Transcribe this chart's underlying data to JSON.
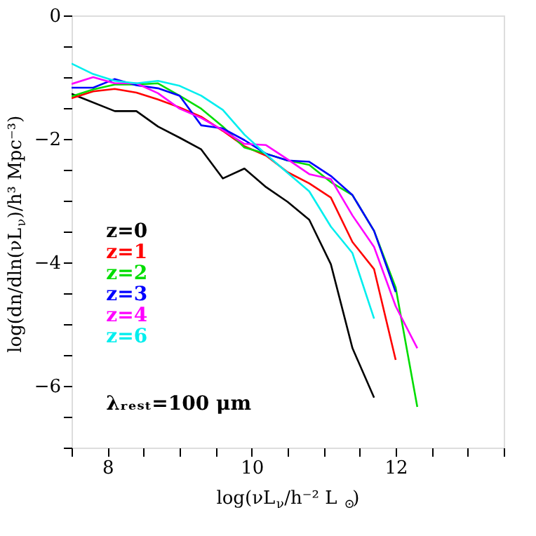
{
  "chart_data": {
    "type": "line",
    "xlabel": "log(νL$_{ν}$/h⁻² L$_{⊙}$)",
    "ylabel": "log(dn/dln(νL$_{ν}$)/h³ Mpc⁻³)",
    "x": [
      7.5,
      7.8,
      8.1,
      8.4,
      8.7,
      9.0,
      9.3,
      9.6,
      9.9,
      10.2,
      10.5,
      10.8,
      11.1,
      11.4,
      11.7,
      12.0,
      12.3
    ],
    "series": [
      {
        "name": "z=0",
        "color": "#000000",
        "x": [
          7.5,
          8.1,
          8.4,
          8.7,
          9.0,
          9.3,
          9.6,
          9.9,
          10.2,
          10.5,
          10.8,
          11.1,
          11.4,
          11.7
        ],
        "values": [
          -1.27,
          -1.55,
          -1.55,
          -1.8,
          -1.98,
          -2.17,
          -2.64,
          -2.48,
          -2.78,
          -3.02,
          -3.31,
          -4.03,
          -5.39,
          -6.19
        ]
      },
      {
        "name": "z=1",
        "color": "#ff0000",
        "values": [
          -1.34,
          -1.23,
          -1.19,
          -1.25,
          -1.36,
          -1.49,
          -1.64,
          -1.87,
          -2.12,
          -2.27,
          -2.54,
          -2.72,
          -2.95,
          -3.67,
          -4.11,
          -5.58,
          null
        ]
      },
      {
        "name": "z=2",
        "color": "#00dd00",
        "values": [
          -1.31,
          -1.2,
          -1.12,
          -1.12,
          -1.1,
          -1.3,
          -1.51,
          -1.8,
          -2.14,
          -2.24,
          -2.35,
          -2.42,
          -2.7,
          -2.91,
          -3.49,
          -4.41,
          -6.34
        ]
      },
      {
        "name": "z=3",
        "color": "#0000ff",
        "values": [
          -1.17,
          -1.17,
          -1.03,
          -1.13,
          -1.18,
          -1.3,
          -1.78,
          -1.83,
          -2.02,
          -2.24,
          -2.35,
          -2.37,
          -2.6,
          -2.91,
          -3.49,
          -4.48,
          null
        ]
      },
      {
        "name": "z=4",
        "color": "#ff00ff",
        "values": [
          -1.11,
          -1.0,
          -1.1,
          -1.1,
          -1.26,
          -1.51,
          -1.66,
          -1.86,
          -2.08,
          -2.1,
          -2.33,
          -2.57,
          -2.65,
          -3.24,
          -3.75,
          -4.71,
          -5.39
        ]
      },
      {
        "name": "z=6",
        "color": "#00eeee",
        "values": [
          -0.78,
          -0.95,
          -1.06,
          -1.1,
          -1.06,
          -1.14,
          -1.3,
          -1.53,
          -1.93,
          -2.25,
          -2.55,
          -2.85,
          -3.42,
          -3.85,
          -4.91,
          null,
          null
        ]
      }
    ],
    "xlim": [
      7.5,
      13.5
    ],
    "ylim": [
      -7,
      0
    ],
    "xticks": [
      {
        "value": 7.5,
        "label": null
      },
      8,
      {
        "value": 8.5,
        "label": null
      },
      {
        "value": 9,
        "label": null
      },
      {
        "value": 9.5,
        "label": null
      },
      10,
      {
        "value": 10.5,
        "label": null
      },
      {
        "value": 11,
        "label": null
      },
      {
        "value": 11.5,
        "label": null
      },
      12,
      {
        "value": 12.5,
        "label": null
      },
      {
        "value": 13,
        "label": null
      },
      {
        "value": 13.5,
        "label": null
      }
    ],
    "yticks": [
      0,
      {
        "value": -0.5,
        "label": null
      },
      {
        "value": -1,
        "label": null
      },
      {
        "value": -1.5,
        "label": null
      },
      -2,
      {
        "value": -2.5,
        "label": null
      },
      {
        "value": -3,
        "label": null
      },
      {
        "value": -3.5,
        "label": null
      },
      -4,
      {
        "value": -4.5,
        "label": null
      },
      {
        "value": -5,
        "label": null
      },
      {
        "value": -5.5,
        "label": null
      },
      -6,
      {
        "value": -6.5,
        "label": null
      },
      {
        "value": -7,
        "label": null
      }
    ],
    "annotations": [
      "λᵣₑₛₜ=100 μm"
    ],
    "legend": "left",
    "grid": false,
    "marker": "none",
    "line_style": "solid"
  }
}
